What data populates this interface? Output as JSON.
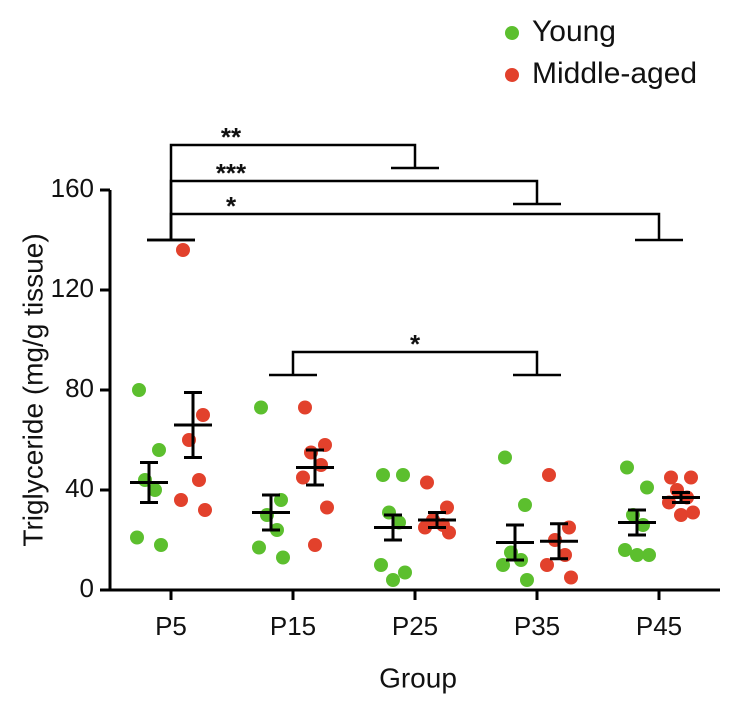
{
  "chart_data": {
    "type": "scatter",
    "y_label": "Triglyceride (mg/g tissue)",
    "x_label": "Group",
    "categories": [
      "P5",
      "P15",
      "P25",
      "P35",
      "P45"
    ],
    "ylim": [
      0,
      160
    ],
    "yticks": [
      0,
      40,
      80,
      120,
      160
    ],
    "legend_position": "top-right",
    "series": [
      {
        "name": "Young",
        "color": "#5cbf2e",
        "values": [
          [
            80,
            56,
            44,
            40,
            21,
            18
          ],
          [
            73,
            36,
            30,
            24,
            17,
            13
          ],
          [
            46,
            46,
            31,
            27,
            10,
            7,
            4
          ],
          [
            53,
            34,
            15,
            12,
            10,
            4
          ],
          [
            49,
            41,
            30,
            26,
            16,
            14,
            14
          ]
        ],
        "means": [
          43,
          31,
          25,
          19,
          27
        ],
        "sem": [
          8,
          7,
          5,
          7,
          5
        ]
      },
      {
        "name": "Middle-aged",
        "color": "#e2412c",
        "values": [
          [
            136,
            70,
            60,
            44,
            36,
            32
          ],
          [
            73,
            58,
            55,
            50,
            45,
            33,
            18
          ],
          [
            43,
            33,
            28,
            26,
            25,
            23
          ],
          [
            46,
            25,
            20,
            14,
            10,
            5
          ],
          [
            45,
            45,
            40,
            37,
            35,
            31,
            30
          ]
        ],
        "means": [
          66,
          49,
          28,
          19.5,
          37
        ],
        "sem": [
          13,
          7,
          3,
          7,
          2
        ]
      }
    ],
    "annotations": [
      {
        "label": "**",
        "groups": [
          "P5",
          "P25"
        ]
      },
      {
        "label": "***",
        "groups": [
          "P5",
          "P35"
        ]
      },
      {
        "label": "*",
        "groups": [
          "P5",
          "P45"
        ]
      },
      {
        "label": "*",
        "groups": [
          "P15",
          "P35"
        ]
      }
    ]
  }
}
